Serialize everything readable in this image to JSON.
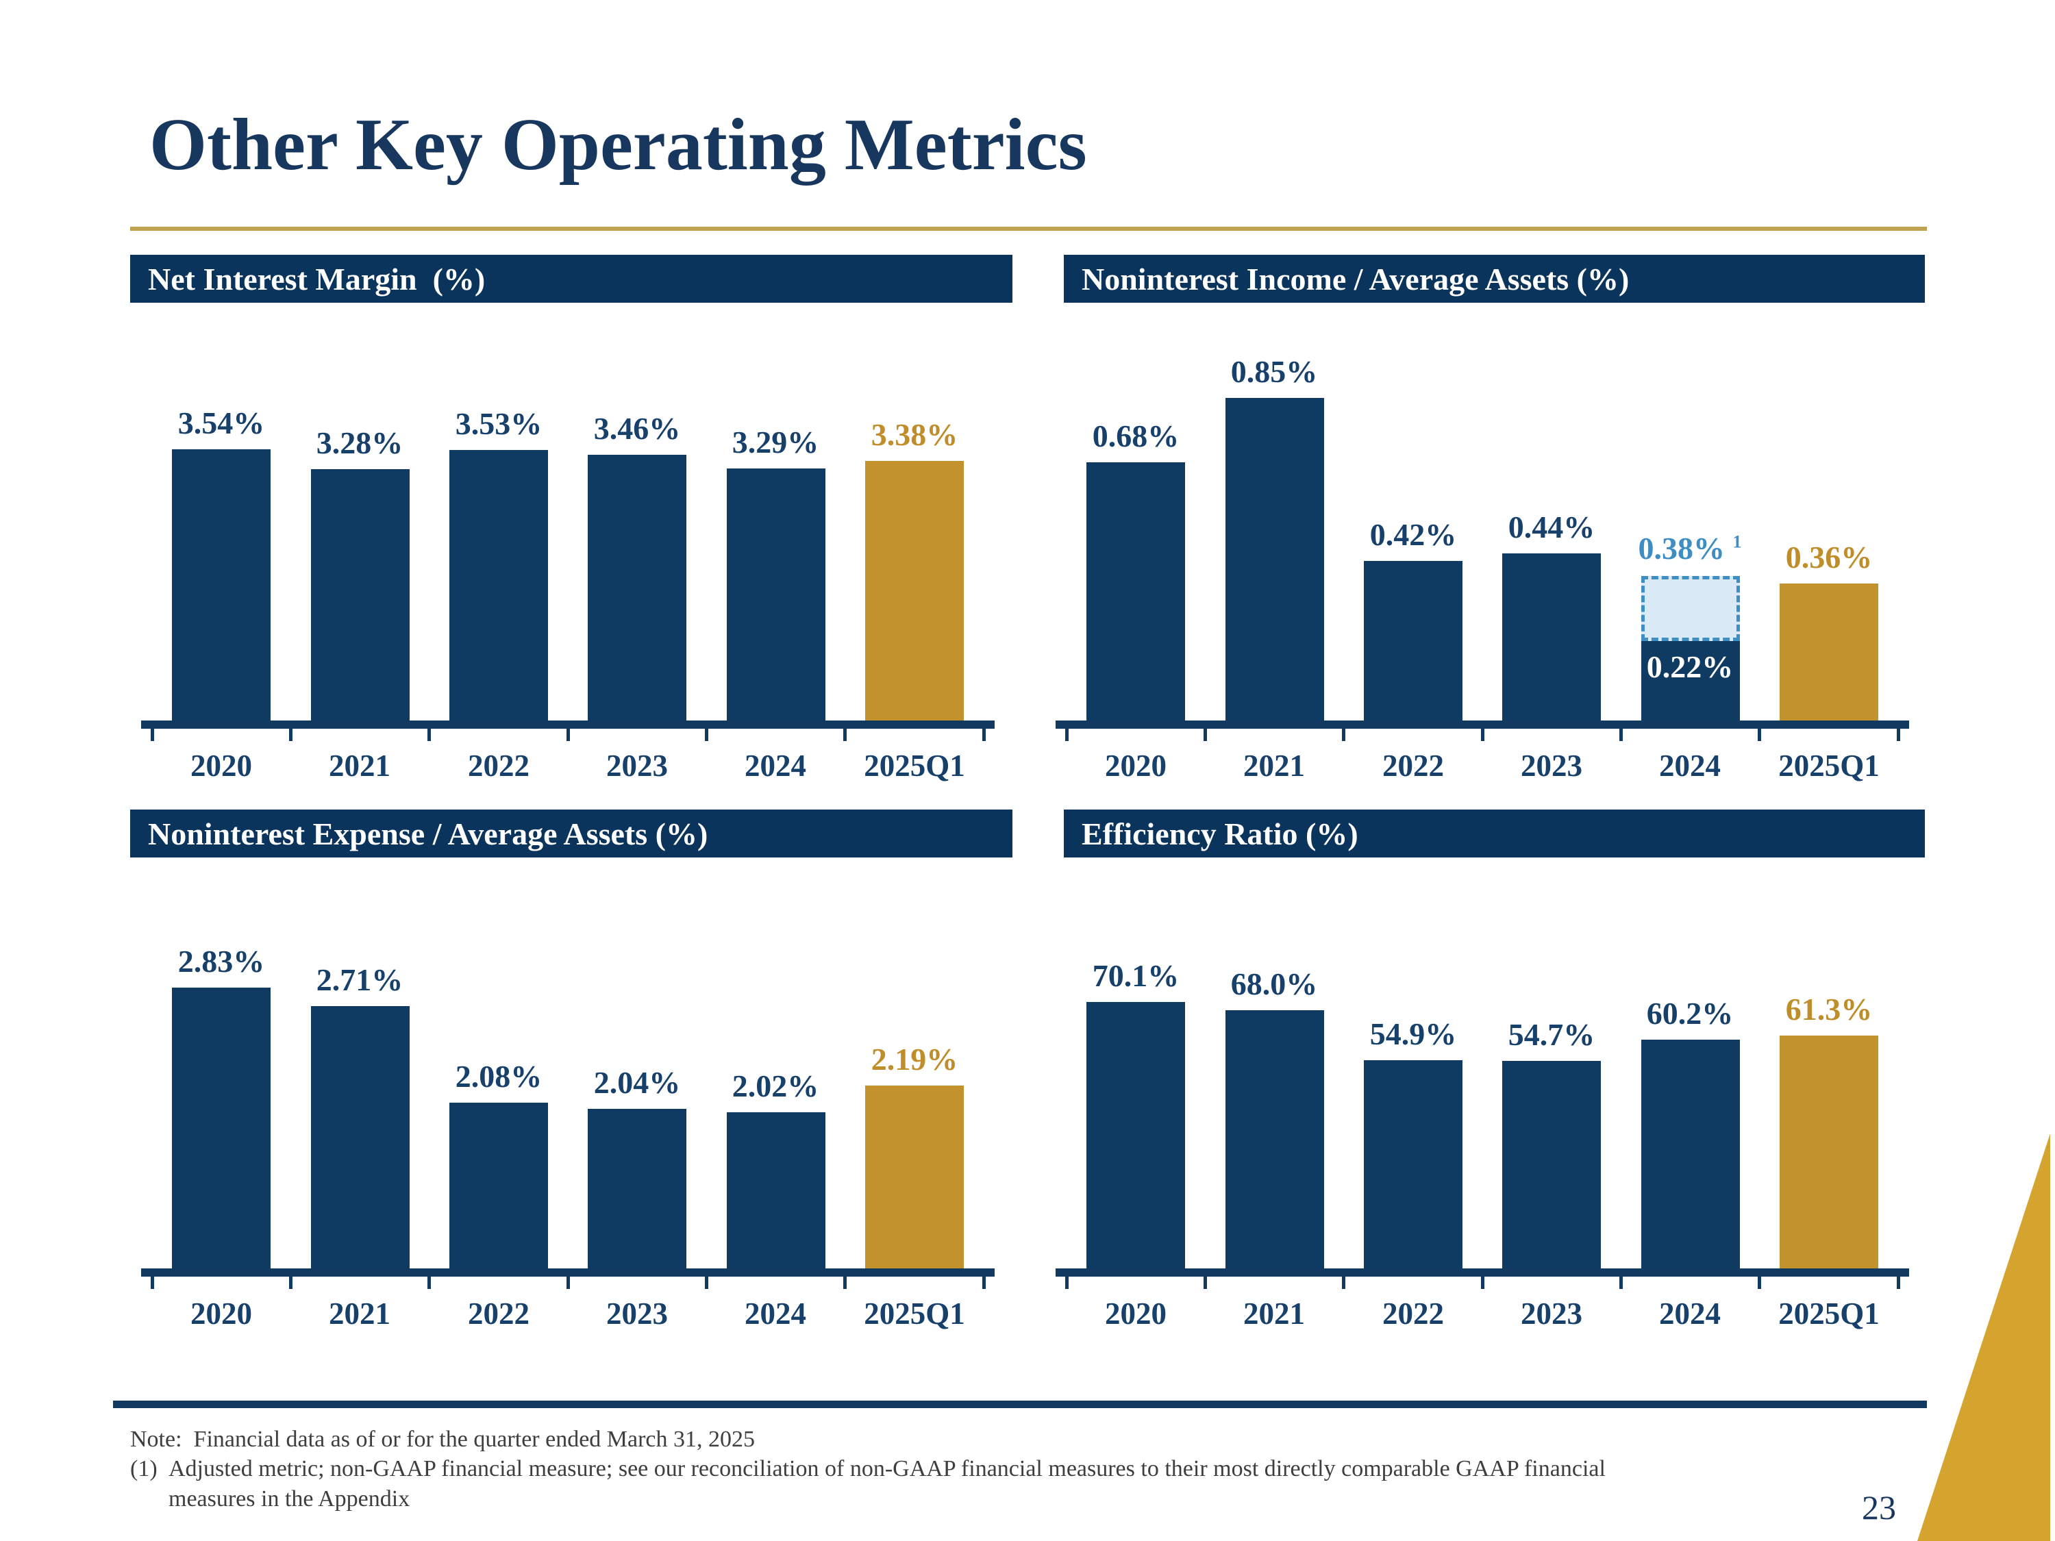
{
  "slide": {
    "title": "Other Key Operating Metrics",
    "page_number": "23",
    "note_line": "Note:  Financial data as of or for the quarter ended March 31, 2025",
    "footnote_marker": "(1)",
    "footnote_text": "Adjusted metric; non-GAAP financial measure; see our reconciliation of non-GAAP financial measures to their most directly comparable GAAP financial",
    "footnote_text_line2": "measures in the Appendix",
    "colors": {
      "navy_bar": "#0F3A61",
      "header_navy": "#0A345C",
      "gold_bar": "#C2922D",
      "gold_text": "#BF8E2B",
      "navy_text": "#17406B",
      "title_navy": "#17375E",
      "divider_gold": "#BFA14F",
      "light_blue_fill": "#D9E9F5",
      "light_blue_border": "#3F8FC5",
      "blue_text": "#3E8EC4",
      "wedge_gold": "#D5A42E",
      "note_gray": "#3E3E3E"
    }
  },
  "chart_data": [
    {
      "type": "bar",
      "title": "Net Interest Margin  (%)",
      "categories": [
        "2020",
        "2021",
        "2022",
        "2023",
        "2024",
        "2025Q1"
      ],
      "values": [
        3.54,
        3.28,
        3.53,
        3.46,
        3.29,
        3.38
      ],
      "labels": [
        "3.54%",
        "3.28%",
        "3.53%",
        "3.46%",
        "3.29%",
        "3.38%"
      ],
      "ylim": [
        0,
        5
      ],
      "grid": false,
      "legend": false,
      "highlight_last_gold": true
    },
    {
      "type": "bar",
      "title": "Noninterest Income / Average Assets (%)",
      "categories": [
        "2020",
        "2021",
        "2022",
        "2023",
        "2024",
        "2025Q1"
      ],
      "values": [
        0.68,
        0.85,
        0.42,
        0.44,
        0.22,
        0.36
      ],
      "labels": [
        "0.68%",
        "0.85%",
        "0.42%",
        "0.44%",
        "0.22%",
        "0.36%"
      ],
      "ylim": [
        0,
        1.01
      ],
      "grid": false,
      "legend": false,
      "highlight_last_gold": true,
      "inside_label_index": 4,
      "overlay": {
        "index": 4,
        "value": 0.38,
        "label": "0.38%",
        "superscript": "1"
      }
    },
    {
      "type": "bar",
      "title": "Noninterest Expense / Average Assets (%)",
      "categories": [
        "2020",
        "2021",
        "2022",
        "2023",
        "2024",
        "2025Q1"
      ],
      "values": [
        2.83,
        2.71,
        2.08,
        2.04,
        2.02,
        2.19
      ],
      "labels": [
        "2.83%",
        "2.71%",
        "2.08%",
        "2.04%",
        "2.02%",
        "2.19%"
      ],
      "ylim": [
        1.0,
        3.5
      ],
      "grid": false,
      "legend": false,
      "highlight_last_gold": true
    },
    {
      "type": "bar",
      "title": "Efficiency Ratio (%)",
      "categories": [
        "2020",
        "2021",
        "2022",
        "2023",
        "2024",
        "2025Q1"
      ],
      "values": [
        70.1,
        68.0,
        54.9,
        54.7,
        60.2,
        61.3
      ],
      "labels": [
        "70.1%",
        "68.0%",
        "54.9%",
        "54.7%",
        "60.2%",
        "61.3%"
      ],
      "ylim": [
        0,
        101
      ],
      "grid": false,
      "legend": false,
      "highlight_last_gold": true
    }
  ]
}
